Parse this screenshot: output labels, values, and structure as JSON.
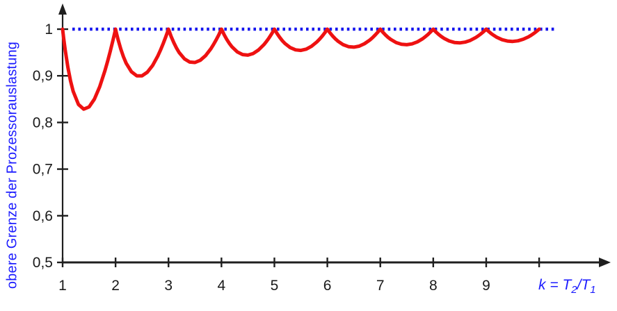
{
  "chart_data": {
    "type": "line",
    "title": "",
    "ylabel": "obere Grenze der Prozessorauslastung",
    "xlabel": "k = T2/T1",
    "xlabel_parts": {
      "k": "k",
      "eq": " = ",
      "T": "T",
      "sub2": "2",
      "slash": "/",
      "sub1": "1"
    },
    "xlim": [
      1,
      10.35
    ],
    "ylim": [
      0.5,
      1.06
    ],
    "grid": false,
    "legend_position": "none",
    "x_ticks": {
      "values": [
        1,
        2,
        3,
        4,
        5,
        6,
        7,
        8,
        9,
        10
      ],
      "labels": [
        "1",
        "2",
        "3",
        "4",
        "5",
        "6",
        "7",
        "8",
        "9",
        ""
      ]
    },
    "y_ticks": {
      "values": [
        0.5,
        0.6,
        0.7,
        0.8,
        0.9,
        1.0
      ],
      "labels": [
        "0,5",
        "0,6",
        "0,7",
        "0,8",
        "0,9",
        "1"
      ]
    },
    "limit_line": {
      "y": 1.0,
      "style": "dotted"
    },
    "series": [
      {
        "name": "obere Grenze der Prozessorauslastung",
        "points": [
          [
            1,
            1
          ],
          [
            1.02,
            0.9808
          ],
          [
            1.05,
            0.9548
          ],
          [
            1.1,
            0.9182
          ],
          [
            1.15,
            0.8891
          ],
          [
            1.2,
            0.8667
          ],
          [
            1.3,
            0.8385
          ],
          [
            1.4,
            0.8286
          ],
          [
            1.5,
            0.8333
          ],
          [
            1.6,
            0.85
          ],
          [
            1.7,
            0.8765
          ],
          [
            1.8,
            0.9111
          ],
          [
            1.85,
            0.9311
          ],
          [
            1.9,
            0.9526
          ],
          [
            1.95,
            0.9756
          ],
          [
            1.98,
            0.9901
          ],
          [
            2,
            1
          ],
          [
            2.02,
            0.9903
          ],
          [
            2.05,
            0.9768
          ],
          [
            2.1,
            0.9571
          ],
          [
            2.15,
            0.9407
          ],
          [
            2.2,
            0.9273
          ],
          [
            2.3,
            0.9087
          ],
          [
            2.4,
            0.9
          ],
          [
            2.5,
            0.9
          ],
          [
            2.6,
            0.9077
          ],
          [
            2.7,
            0.9222
          ],
          [
            2.8,
            0.9429
          ],
          [
            2.85,
            0.9553
          ],
          [
            2.9,
            0.969
          ],
          [
            2.95,
            0.9839
          ],
          [
            2.98,
            0.9934
          ],
          [
            3,
            1
          ],
          [
            3.02,
            0.9935
          ],
          [
            3.05,
            0.9844
          ],
          [
            3.1,
            0.971
          ],
          [
            3.15,
            0.9595
          ],
          [
            3.2,
            0.95
          ],
          [
            3.3,
            0.9364
          ],
          [
            3.4,
            0.9294
          ],
          [
            3.5,
            0.9286
          ],
          [
            3.6,
            0.9333
          ],
          [
            3.7,
            0.9432
          ],
          [
            3.8,
            0.9579
          ],
          [
            3.85,
            0.9669
          ],
          [
            3.9,
            0.9769
          ],
          [
            3.95,
            0.988
          ],
          [
            3.98,
            0.9951
          ],
          [
            4,
            1
          ],
          [
            4.05,
            0.9883
          ],
          [
            4.1,
            0.978
          ],
          [
            4.15,
            0.9693
          ],
          [
            4.2,
            0.9619
          ],
          [
            4.3,
            0.9512
          ],
          [
            4.4,
            0.9455
          ],
          [
            4.5,
            0.9444
          ],
          [
            4.6,
            0.9478
          ],
          [
            4.7,
            0.9553
          ],
          [
            4.8,
            0.9667
          ],
          [
            4.85,
            0.9737
          ],
          [
            4.9,
            0.9816
          ],
          [
            4.95,
            0.9904
          ],
          [
            5,
            1
          ],
          [
            5.05,
            0.9906
          ],
          [
            5.1,
            0.9824
          ],
          [
            5.15,
            0.9752
          ],
          [
            5.2,
            0.9692
          ],
          [
            5.3,
            0.9604
          ],
          [
            5.4,
            0.9556
          ],
          [
            5.5,
            0.9545
          ],
          [
            5.6,
            0.9571
          ],
          [
            5.7,
            0.9632
          ],
          [
            5.8,
            0.9724
          ],
          [
            5.85,
            0.9782
          ],
          [
            5.9,
            0.9847
          ],
          [
            5.95,
            0.992
          ],
          [
            6,
            1
          ],
          [
            6.05,
            0.9921
          ],
          [
            6.1,
            0.9852
          ],
          [
            6.15,
            0.9793
          ],
          [
            6.2,
            0.9742
          ],
          [
            6.3,
            0.9667
          ],
          [
            6.4,
            0.9625
          ],
          [
            6.5,
            0.9615
          ],
          [
            6.6,
            0.9636
          ],
          [
            6.7,
            0.9687
          ],
          [
            6.8,
            0.9765
          ],
          [
            6.85,
            0.9814
          ],
          [
            6.9,
            0.987
          ],
          [
            6.95,
            0.9932
          ],
          [
            7,
            1
          ],
          [
            7.05,
            0.9933
          ],
          [
            7.1,
            0.9873
          ],
          [
            7.15,
            0.9822
          ],
          [
            7.2,
            0.9778
          ],
          [
            7.3,
            0.9712
          ],
          [
            7.4,
            0.9676
          ],
          [
            7.5,
            0.9667
          ],
          [
            7.6,
            0.9684
          ],
          [
            7.7,
            0.9727
          ],
          [
            7.8,
            0.9795
          ],
          [
            7.85,
            0.9838
          ],
          [
            7.9,
            0.9886
          ],
          [
            7.95,
            0.994
          ],
          [
            8,
            1
          ],
          [
            8.05,
            0.9941
          ],
          [
            8.1,
            0.9889
          ],
          [
            8.15,
            0.9844
          ],
          [
            8.2,
            0.9805
          ],
          [
            8.3,
            0.9747
          ],
          [
            8.4,
            0.9714
          ],
          [
            8.5,
            0.9706
          ],
          [
            8.6,
            0.9721
          ],
          [
            8.7,
            0.9759
          ],
          [
            8.8,
            0.9818
          ],
          [
            8.85,
            0.9856
          ],
          [
            8.9,
            0.9899
          ],
          [
            8.95,
            0.9947
          ],
          [
            9,
            1
          ],
          [
            9.05,
            0.9948
          ],
          [
            9.1,
            0.9901
          ],
          [
            9.15,
            0.9861
          ],
          [
            9.2,
            0.9826
          ],
          [
            9.3,
            0.9774
          ],
          [
            9.4,
            0.9745
          ],
          [
            9.5,
            0.9737
          ],
          [
            9.6,
            0.975
          ],
          [
            9.7,
            0.9784
          ],
          [
            9.8,
            0.9837
          ],
          [
            9.85,
            0.9871
          ],
          [
            9.9,
            0.9909
          ],
          [
            9.95,
            0.9952
          ],
          [
            10,
            1
          ]
        ]
      }
    ],
    "colors": {
      "curve": "#ee1111",
      "limit": "#1515ee",
      "axis": "#1f1f1f",
      "tick_text": "#1a1a1a",
      "label_blue": "#1c1cff"
    }
  }
}
